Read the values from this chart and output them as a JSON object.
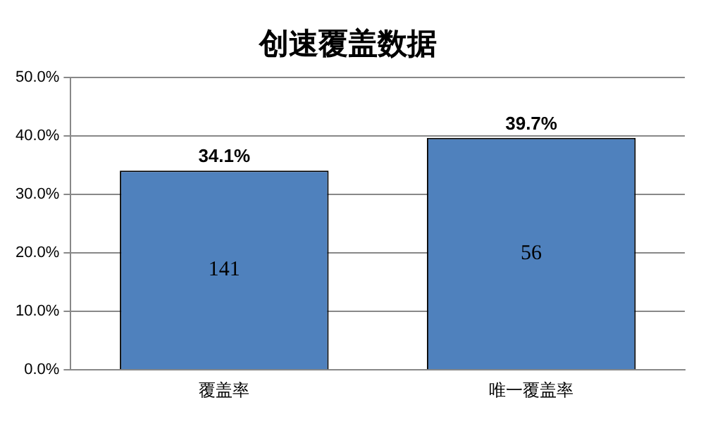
{
  "chart_data": {
    "type": "bar",
    "title": "创速覆盖数据",
    "categories": [
      "覆盖率",
      "唯一覆盖率"
    ],
    "values": [
      34.1,
      39.7
    ],
    "color": "#4f81bd",
    "value_labels": [
      "34.1%",
      "39.7%"
    ],
    "annotations": [
      "141",
      "56"
    ],
    "ylim": [
      0,
      50
    ],
    "yticks": [
      {
        "value": 0,
        "label": "0.0%"
      },
      {
        "value": 10,
        "label": "10.0%"
      },
      {
        "value": 20,
        "label": "20.0%"
      },
      {
        "value": 30,
        "label": "30.0%"
      },
      {
        "value": 40,
        "label": "40.0%"
      },
      {
        "value": 50,
        "label": "50.0%"
      }
    ],
    "grid": "y",
    "legend": false
  }
}
